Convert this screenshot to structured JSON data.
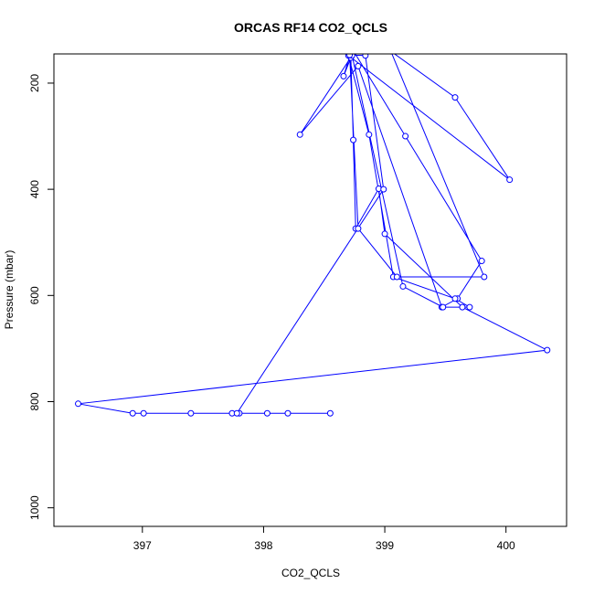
{
  "chart_data": {
    "type": "line",
    "title": "ORCAS RF14 CO2_QCLS",
    "xlabel": "CO2_QCLS",
    "ylabel": "Pressure (mbar)",
    "xlim": [
      396.27,
      400.5
    ],
    "ylim": [
      1035,
      145
    ],
    "y_reversed": true,
    "grid": false,
    "xticks": [
      397,
      398,
      399,
      400
    ],
    "xtick_labels": [
      "397",
      "398",
      "399",
      "400"
    ],
    "yticks": [
      200,
      400,
      600,
      800,
      1000
    ],
    "ytick_labels": [
      "200",
      "400",
      "600",
      "800",
      "1000"
    ],
    "color": "#0000ff",
    "series": [
      {
        "x": [
          398.55,
          398.2,
          398.03,
          397.8,
          397.74,
          397.4,
          397.01,
          396.92,
          396.47,
          400.34,
          399.64,
          399.0,
          398.95,
          398.76,
          398.74,
          398.72,
          398.66,
          398.73,
          399.17,
          399.8,
          399.6,
          399.47,
          398.78,
          398.3,
          398.73,
          399.15,
          399.48,
          399.7,
          399.58,
          399.07,
          398.87,
          398.7,
          400.03,
          399.58,
          399.05,
          399.82,
          399.1,
          398.78,
          398.71,
          398.84,
          398.99,
          397.78
        ],
        "y": [
          822,
          822,
          822,
          822,
          822,
          822,
          822,
          822,
          804,
          703,
          622,
          484,
          399,
          474,
          307,
          152,
          187,
          135,
          300,
          535,
          606,
          622,
          168,
          297,
          148,
          583,
          622,
          622,
          606,
          565,
          297,
          148,
          382,
          227,
          140,
          565,
          565,
          474,
          147,
          148,
          400,
          822
        ]
      }
    ]
  }
}
